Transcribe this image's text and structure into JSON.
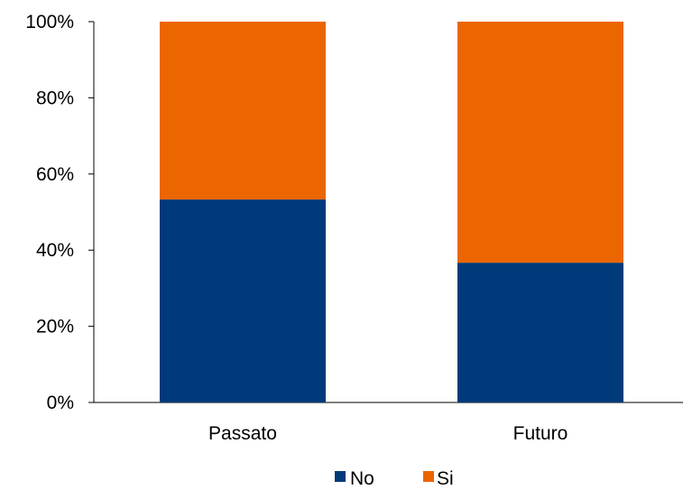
{
  "chart_data": {
    "type": "bar",
    "stacked": true,
    "categories": [
      "Passato",
      "Futuro"
    ],
    "series": [
      {
        "name": "No",
        "values": [
          53.3,
          36.7
        ],
        "color": "#003A7A"
      },
      {
        "name": "Si",
        "values": [
          46.7,
          63.3
        ],
        "color": "#EB6500"
      }
    ],
    "y_ticks": [
      "0%",
      "20%",
      "40%",
      "60%",
      "80%",
      "100%"
    ],
    "ylim": [
      0,
      100
    ],
    "grid": false,
    "legend_position": "bottom"
  }
}
